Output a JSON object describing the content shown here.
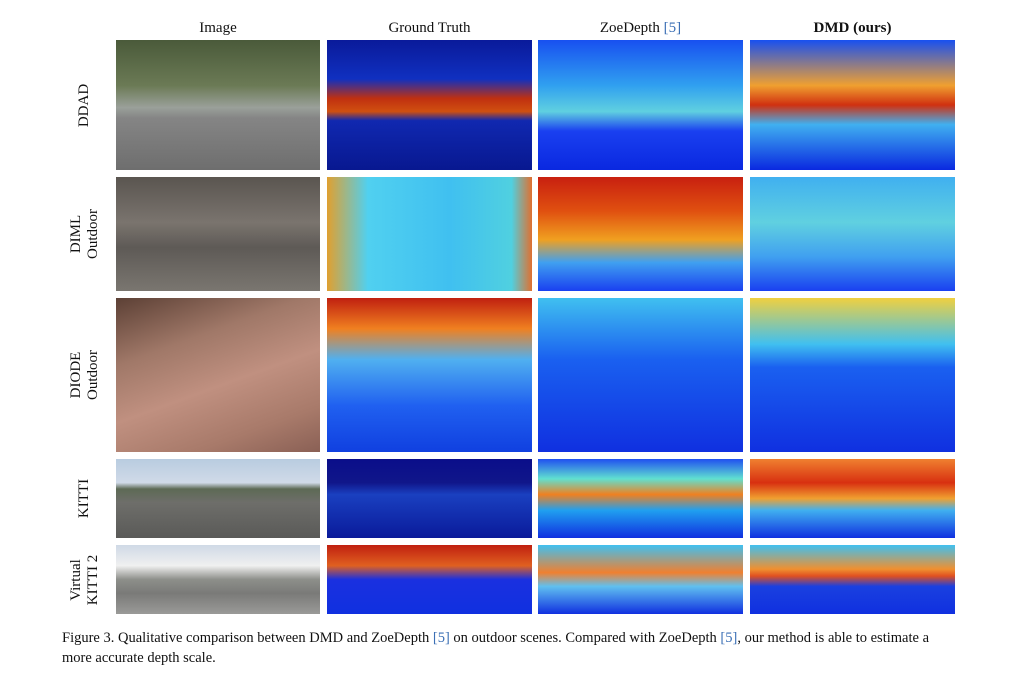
{
  "columns": [
    {
      "label": "Image"
    },
    {
      "label": "Ground Truth"
    },
    {
      "label": "ZoeDepth ",
      "cite": "[5]"
    },
    {
      "label": "DMD (ours)"
    }
  ],
  "rows": [
    {
      "label": "DDAD"
    },
    {
      "label": "DIML\nOutdoor"
    },
    {
      "label": "DIODE\nOutdoor"
    },
    {
      "label": "KITTI"
    },
    {
      "label": "Virtual\nKITTI 2"
    }
  ],
  "colormap": "jet",
  "caption": {
    "part1": "Figure 3. Qualitative comparison between DMD and ZoeDepth ",
    "cite1": "[5]",
    "part2": " on outdoor scenes. Compared with ZoeDepth ",
    "cite2": "[5]",
    "part3": ", our method is able to estimate a more accurate depth scale."
  },
  "colors": {
    "citation": "#3b6fb5"
  }
}
